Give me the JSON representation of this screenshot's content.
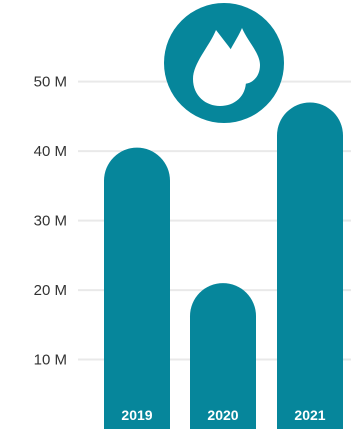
{
  "chart_data": {
    "type": "bar",
    "categories": [
      "2019",
      "2020",
      "2021"
    ],
    "values": [
      40.5,
      21,
      47
    ],
    "title": "",
    "xlabel": "",
    "ylabel": "",
    "ylim": [
      0,
      56
    ],
    "y_ticks": [
      {
        "value": 10,
        "label": "10 M"
      },
      {
        "value": 20,
        "label": "20 M"
      },
      {
        "value": 30,
        "label": "30 M"
      },
      {
        "value": 40,
        "label": "40 M"
      },
      {
        "value": 50,
        "label": "50 M"
      }
    ],
    "grid": true,
    "category_labels_inside_bars": true
  },
  "colors": {
    "bar": "#06869b",
    "grid": "#e9e9e9",
    "tick_text": "#333333",
    "category_text": "#ffffff",
    "icon_bg": "#06869b",
    "icon_fg": "#ffffff"
  },
  "icon": {
    "name": "water-drops-icon"
  }
}
